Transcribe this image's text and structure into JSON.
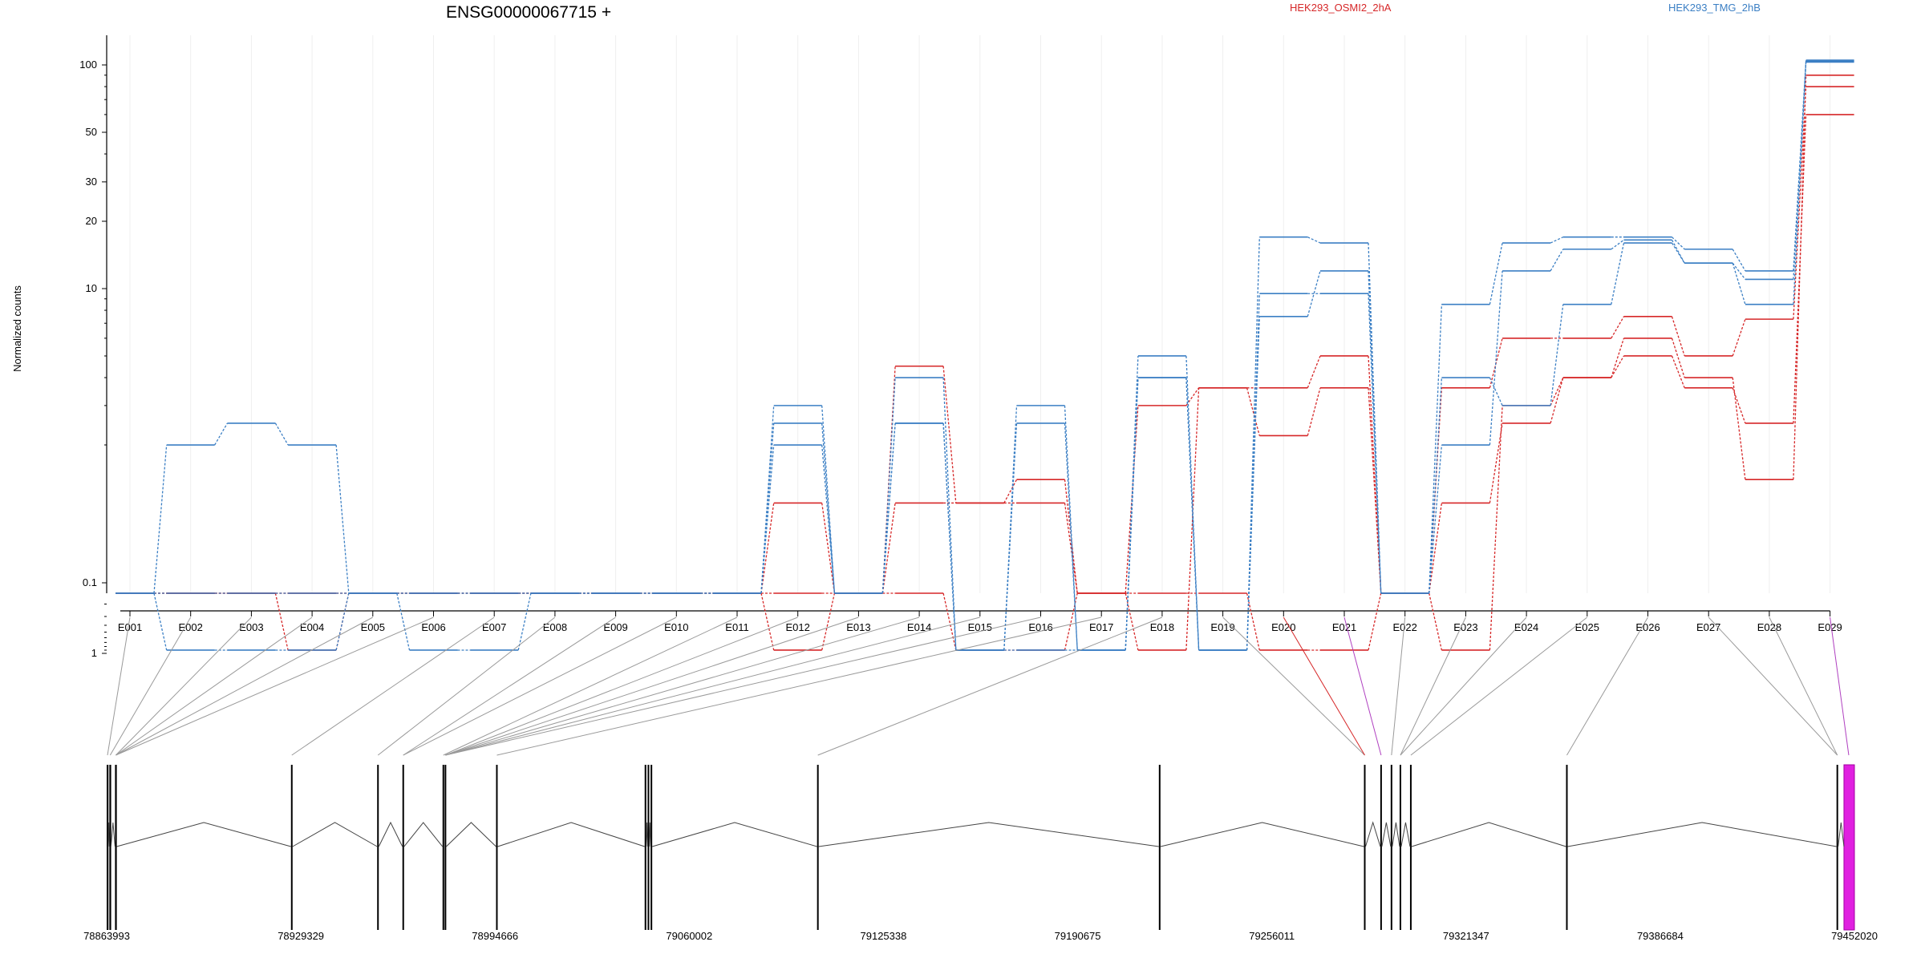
{
  "chart_data": {
    "type": "line",
    "title": "ENSG00000067715 +",
    "ylabel": "Normalized counts",
    "yscale": "log (0.1 floor)",
    "ylim": [
      0.07,
      130
    ],
    "yticks": [
      0.1,
      1,
      10,
      20,
      30,
      50,
      100
    ],
    "ytick_labels": [
      "0.1",
      "1",
      "10",
      "20",
      "30",
      "50",
      "100"
    ],
    "grid": "vertical, light",
    "categories": [
      "E001",
      "E002",
      "E003",
      "E004",
      "E005",
      "E006",
      "E007",
      "E008",
      "E009",
      "E010",
      "E011",
      "E012",
      "E013",
      "E014",
      "E015",
      "E016",
      "E017",
      "E018",
      "E019",
      "E020",
      "E021",
      "E022",
      "E023",
      "E024",
      "E025",
      "E026",
      "E027",
      "E028",
      "E029"
    ],
    "legend": [
      {
        "label": "HEK293_OSMI2_2hA",
        "color": "#d62728"
      },
      {
        "label": "HEK293_TMG_2hB",
        "color": "#3b7fc4"
      }
    ],
    "series": [
      {
        "group": "HEK293_OSMI2_2hA",
        "color": "#d62728",
        "values": [
          0.07,
          0.07,
          0.07,
          0.07,
          0.07,
          0.07,
          0.07,
          0.07,
          0.07,
          0.07,
          0.07,
          1.1,
          0.07,
          4.5,
          1.1,
          1.1,
          0.07,
          3.0,
          3.6,
          3.6,
          5.0,
          0.07,
          3.6,
          6.0,
          6.0,
          7.5,
          5.0,
          7.3,
          80
        ]
      },
      {
        "group": "HEK293_OSMI2_2hA",
        "color": "#d62728",
        "values": [
          0.07,
          0.07,
          0.07,
          0.9,
          0.07,
          0.07,
          0.07,
          0.07,
          0.07,
          0.07,
          0.07,
          0.9,
          0.07,
          1.1,
          1.1,
          1.4,
          0.07,
          0.9,
          3.6,
          2.2,
          3.6,
          0.07,
          1.1,
          2.5,
          4.0,
          5.0,
          3.6,
          2.5,
          60
        ]
      },
      {
        "group": "HEK293_OSMI2_2hA",
        "color": "#d62728",
        "values": [
          0.07,
          0.07,
          0.07,
          0.07,
          0.07,
          0.07,
          0.07,
          0.07,
          0.07,
          0.07,
          0.07,
          0.07,
          0.07,
          0.07,
          0.9,
          0.9,
          0.07,
          0.07,
          0.07,
          0.9,
          0.9,
          0.07,
          0.9,
          3.0,
          4.0,
          6.0,
          4.0,
          1.4,
          90
        ]
      },
      {
        "group": "HEK293_TMG_2hB",
        "color": "#3b7fc4",
        "values": [
          0.07,
          2.0,
          2.5,
          2.0,
          0.07,
          0.9,
          0.9,
          0.07,
          0.07,
          0.07,
          0.07,
          3.0,
          0.07,
          4.0,
          0.9,
          3.0,
          0.9,
          4.0,
          0.9,
          17,
          16,
          0.07,
          8.5,
          16,
          17,
          17,
          15,
          12,
          105
        ]
      },
      {
        "group": "HEK293_TMG_2hB",
        "color": "#3b7fc4",
        "values": [
          0.07,
          0.9,
          0.9,
          0.9,
          0.07,
          0.07,
          0.07,
          0.07,
          0.07,
          0.07,
          0.07,
          2.5,
          0.07,
          2.5,
          0.9,
          2.5,
          0.9,
          5.0,
          0.9,
          9.5,
          9.5,
          0.07,
          4.0,
          3.0,
          8.5,
          16,
          13,
          11,
          103
        ]
      },
      {
        "group": "HEK293_TMG_2hB",
        "color": "#3b7fc4",
        "values": [
          0.07,
          0.07,
          0.07,
          0.07,
          0.07,
          0.07,
          0.07,
          0.07,
          0.07,
          0.07,
          0.07,
          2.0,
          0.07,
          2.5,
          0.9,
          0.9,
          0.9,
          4.0,
          0.9,
          7.5,
          12,
          0.07,
          2.0,
          12,
          15,
          16.5,
          13,
          8.5,
          104
        ]
      }
    ],
    "exon_coords_label": [
      "78863993",
      "78929329",
      "78994666",
      "79060002",
      "79125338",
      "79190675",
      "79256011",
      "79321347",
      "79386684",
      "79452020"
    ],
    "genomic_range": [
      78863993,
      79452020
    ],
    "exon_starts": [
      78863993,
      78864900,
      78866800,
      78926000,
      78955000,
      78963500,
      78977000,
      78977700,
      78995000,
      79045000,
      79046000,
      79047000,
      79103000,
      79218000,
      79287000,
      79292500,
      79296000,
      79299000,
      79302500,
      79355000,
      79446000
    ],
    "exon_widths": [
      600,
      600,
      600,
      300,
      300,
      300,
      300,
      300,
      300,
      400,
      300,
      300,
      300,
      300,
      300,
      300,
      300,
      300,
      300,
      300,
      300
    ],
    "highlight_exon": {
      "start": 79448500,
      "end": 79452020,
      "color": "#e020e0"
    },
    "connector_targets": [
      0,
      1,
      2,
      2,
      2,
      2,
      3,
      4,
      5,
      5,
      6,
      7,
      7,
      7,
      7,
      7,
      8,
      12,
      14,
      14,
      15,
      16,
      17,
      17,
      18,
      19,
      20,
      20,
      21
    ],
    "connector_colors": {
      "E020": "#d62728",
      "E021": "#b040c0",
      "E029": "#b040c0"
    }
  }
}
